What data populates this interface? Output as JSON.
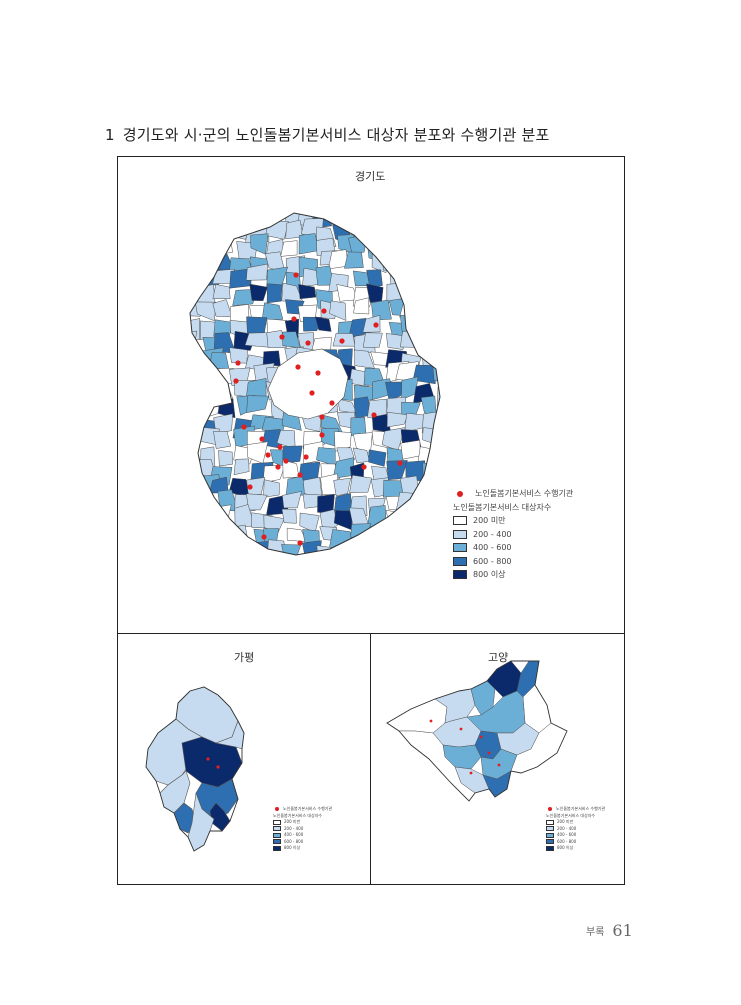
{
  "heading": {
    "number": "1",
    "text": "경기도와 시·군의 노인돌봄기본서비스 대상자 분포와 수행기관 분포"
  },
  "panels": {
    "main": {
      "title": "경기도",
      "legend": {
        "marker_label": "노인돌봄기본서비스 수행기관",
        "fill_title": "노인돌봄기본서비스 대상자수",
        "classes": [
          {
            "label": "200 미만",
            "color": "#ffffff"
          },
          {
            "label": "200 - 400",
            "color": "#c6dbef"
          },
          {
            "label": "400 - 600",
            "color": "#6baed6"
          },
          {
            "label": "600 - 800",
            "color": "#2d6fb0"
          },
          {
            "label": "800 이상",
            "color": "#0b2a6b"
          }
        ]
      }
    },
    "gapyeong": {
      "title": "가평",
      "legend": {
        "marker_label": "노인돌봄기본서비스 수행기관",
        "fill_title": "노인돌봄기본서비스 대상자수",
        "classes": [
          {
            "label": "200 미만"
          },
          {
            "label": "200 - 400"
          },
          {
            "label": "400 - 600"
          },
          {
            "label": "600 - 800"
          },
          {
            "label": "800 이상"
          }
        ]
      }
    },
    "goyang": {
      "title": "고양",
      "legend": {
        "marker_label": "노인돌봄기본서비스 수행기관",
        "fill_title": "노인돌봄기본서비스 대상자수",
        "classes": [
          {
            "label": "200 미만"
          },
          {
            "label": "200 - 400"
          },
          {
            "label": "400 - 600"
          },
          {
            "label": "600 - 800"
          },
          {
            "label": "800 이상"
          }
        ]
      }
    }
  },
  "footer": {
    "section": "부록",
    "page": "61"
  }
}
